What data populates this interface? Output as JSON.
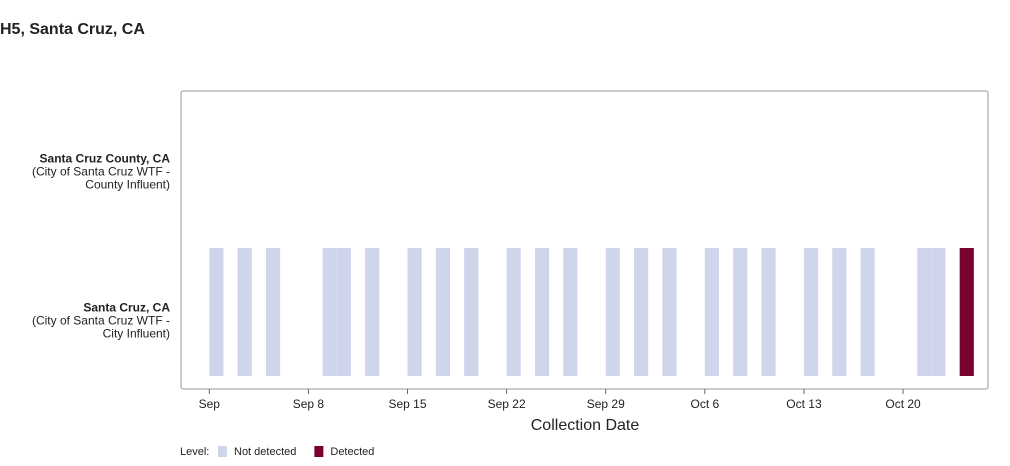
{
  "chart_data": {
    "type": "timeline",
    "title": "H5, Santa Cruz, CA",
    "x_label": "Collection Date",
    "rows": [
      {
        "name": "Santa Cruz County, CA",
        "sub": [
          "(City of Santa Cruz WTF -",
          "County Influent)"
        ]
      },
      {
        "name": "Santa Cruz, CA",
        "sub": [
          "(City of Santa Cruz WTF -",
          "City Influent)"
        ]
      }
    ],
    "xlim": [
      "Aug 30",
      "Oct 26"
    ],
    "xticks": [
      {
        "value": "Sep 1",
        "label": "Sep"
      },
      "Sep 8",
      "Sep 15",
      "Sep 22",
      "Sep 29",
      "Oct 6",
      "Oct 13",
      "Oct 20"
    ],
    "legend_title": "Level:",
    "series": [
      {
        "name": "Not detected",
        "color": "#cfd6ec",
        "site": "Santa Cruz, CA",
        "x": [
          "Sep 1",
          "Sep 3",
          "Sep 5",
          "Sep 9",
          "Sep 10",
          "Sep 12",
          "Sep 15",
          "Sep 17",
          "Sep 19",
          "Sep 22",
          "Sep 24",
          "Sep 26",
          "Sep 29",
          "Oct 1",
          "Oct 3",
          "Oct 6",
          "Oct 8",
          "Oct 10",
          "Oct 13",
          "Oct 15",
          "Oct 17",
          "Oct 21",
          "Oct 22"
        ]
      },
      {
        "name": "Detected",
        "color": "#7a0030",
        "site": "Santa Cruz, CA",
        "x": [
          "Oct 24"
        ]
      }
    ]
  }
}
